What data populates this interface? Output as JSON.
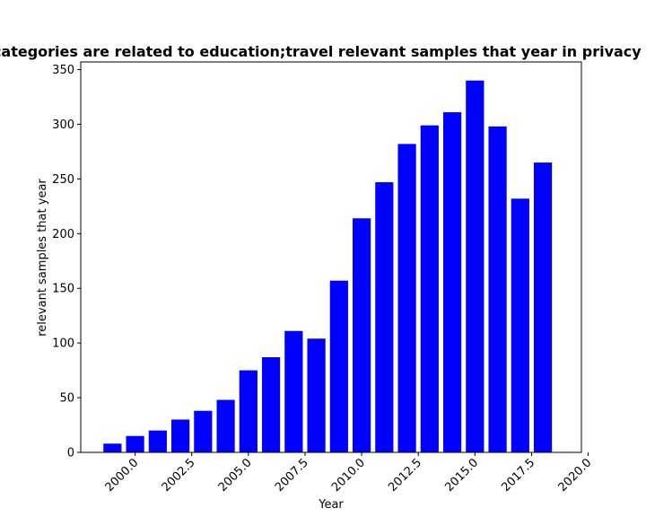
{
  "chart_data": {
    "type": "bar",
    "title": "Which categories are related to education;travel relevant samples that year in privacy policies",
    "xlabel": "Year",
    "ylabel": "relevant samples that year",
    "x": [
      1999,
      2000,
      2001,
      2002,
      2003,
      2004,
      2005,
      2006,
      2007,
      2008,
      2009,
      2010,
      2011,
      2012,
      2013,
      2014,
      2015,
      2016,
      2017,
      2018
    ],
    "values": [
      8,
      15,
      20,
      30,
      38,
      48,
      75,
      87,
      111,
      104,
      157,
      214,
      247,
      282,
      299,
      311,
      340,
      298,
      232,
      265
    ],
    "xlim": [
      1997.6,
      2019.7
    ],
    "ylim": [
      0,
      357
    ],
    "xticks": [
      "2000.0",
      "2002.5",
      "2005.0",
      "2007.5",
      "2010.0",
      "2012.5",
      "2015.0",
      "2017.5",
      "2020.0"
    ],
    "xtick_values": [
      2000,
      2002.5,
      2005,
      2007.5,
      2010,
      2012.5,
      2015,
      2017.5,
      2020
    ],
    "yticks": [
      0,
      50,
      100,
      150,
      200,
      250,
      300,
      350
    ],
    "bar_color": "#0000ff",
    "grid": false
  }
}
